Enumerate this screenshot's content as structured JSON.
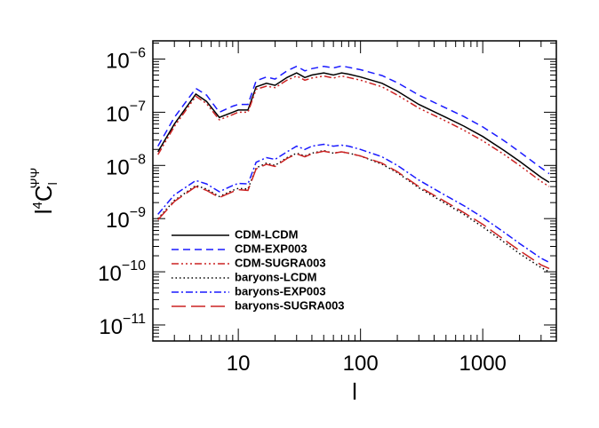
{
  "chart_data": {
    "type": "line",
    "xlabel": "l",
    "ylabel_parts": [
      "l",
      "4",
      "C",
      "l",
      "ΨΨ"
    ],
    "xlog": true,
    "ylog": true,
    "xlim": [
      2,
      4000
    ],
    "ylim": [
      5e-12,
      2.2e-06
    ],
    "xticks": [
      10,
      100,
      1000
    ],
    "yticks": [
      {
        "value": 1e-06,
        "label": "10",
        "exponent": "−6"
      },
      {
        "value": 1e-07,
        "label": "10",
        "exponent": "−7"
      },
      {
        "value": 1e-08,
        "label": "10",
        "exponent": "−8"
      },
      {
        "value": 1e-09,
        "label": "10",
        "exponent": "−9"
      },
      {
        "value": 1e-10,
        "label": "10",
        "exponent": "−10"
      },
      {
        "value": 1e-11,
        "label": "10",
        "exponent": "−11"
      }
    ],
    "legend_position": "lower left",
    "x": [
      2.2,
      3,
      4.5,
      5.5,
      7,
      9,
      10,
      12,
      14,
      17,
      20,
      25,
      30,
      35,
      40,
      50,
      60,
      70,
      80,
      100,
      150,
      200,
      300,
      500,
      700,
      1000,
      1500,
      2000,
      3000,
      3500
    ],
    "series": [
      {
        "name": "CDM-LCDM",
        "color": "#000000",
        "linestyle": "solid",
        "values": [
          1.8e-08,
          6e-08,
          2.2e-07,
          1.6e-07,
          8e-08,
          1e-07,
          1.1e-07,
          1.1e-07,
          3e-07,
          3.5e-07,
          3.2e-07,
          4.5e-07,
          5.5e-07,
          4.5e-07,
          5e-07,
          5.5e-07,
          5e-07,
          5.5e-07,
          5.2e-07,
          4.6e-07,
          3.5e-07,
          2.5e-07,
          1.4e-07,
          8e-08,
          5.5e-08,
          3.5e-08,
          1.9e-08,
          1.2e-08,
          6e-09,
          4.8e-09
        ]
      },
      {
        "name": "CDM-EXP003",
        "color": "#1a1aff",
        "linestyle": "dashed",
        "values": [
          2.3e-08,
          8e-08,
          2.8e-07,
          2.1e-07,
          1e-07,
          1.3e-07,
          1.4e-07,
          1.4e-07,
          3.9e-07,
          4.6e-07,
          4.2e-07,
          6e-07,
          7.3e-07,
          6e-07,
          6.6e-07,
          7.3e-07,
          6.8e-07,
          7.4e-07,
          7e-07,
          6.3e-07,
          4.9e-07,
          3.6e-07,
          2.1e-07,
          1.2e-07,
          8.3e-08,
          5.3e-08,
          2.9e-08,
          1.8e-08,
          9e-09,
          7e-09
        ]
      },
      {
        "name": "CDM-SUGRA003",
        "color": "#cc2222",
        "linestyle": "dashdot3",
        "values": [
          1.6e-08,
          5.4e-08,
          2e-07,
          1.45e-07,
          7.2e-08,
          9e-08,
          1e-07,
          1e-07,
          2.7e-07,
          3.1e-07,
          2.9e-07,
          4e-07,
          4.8e-07,
          4e-07,
          4.4e-07,
          4.8e-07,
          4.4e-07,
          4.8e-07,
          4.5e-07,
          4e-07,
          3e-07,
          2.1e-07,
          1.2e-07,
          6.8e-08,
          4.6e-08,
          2.9e-08,
          1.6e-08,
          1e-08,
          5e-09,
          4e-09
        ]
      },
      {
        "name": "baryons-LCDM",
        "color": "#000000",
        "linestyle": "dotted",
        "values": [
          1e-09,
          2.2e-09,
          4.2e-09,
          3.6e-09,
          2.6e-09,
          3.4e-09,
          3.7e-09,
          3.6e-09,
          9e-09,
          1.1e-08,
          1e-08,
          1.4e-08,
          1.7e-08,
          1.5e-08,
          1.7e-08,
          1.9e-08,
          1.7e-08,
          1.8e-08,
          1.7e-08,
          1.5e-08,
          1.05e-08,
          7.3e-09,
          3.8e-09,
          1.9e-09,
          1.2e-09,
          7e-10,
          3.6e-10,
          2.2e-10,
          1.2e-10,
          1e-10
        ]
      },
      {
        "name": "baryons-EXP003",
        "color": "#1a1aff",
        "linestyle": "dashdot",
        "values": [
          1.2e-09,
          2.8e-09,
          5.2e-09,
          4.5e-09,
          3.2e-09,
          4.2e-09,
          4.6e-09,
          4.5e-09,
          1.15e-08,
          1.4e-08,
          1.3e-08,
          1.8e-08,
          2.3e-08,
          2e-08,
          2.3e-08,
          2.5e-08,
          2.3e-08,
          2.4e-08,
          2.3e-08,
          2e-08,
          1.45e-08,
          1e-08,
          5.3e-09,
          2.7e-09,
          1.75e-09,
          1.05e-09,
          5.5e-10,
          3.4e-10,
          1.8e-10,
          1.5e-10
        ]
      },
      {
        "name": "baryons-SUGRA003",
        "color": "#cc2222",
        "linestyle": "longdash",
        "values": [
          9.5e-10,
          2.1e-09,
          4e-09,
          3.4e-09,
          2.5e-09,
          3.2e-09,
          3.5e-09,
          3.4e-09,
          8.6e-09,
          1.05e-08,
          9.6e-09,
          1.35e-08,
          1.65e-08,
          1.45e-08,
          1.65e-08,
          1.85e-08,
          1.7e-08,
          1.8e-08,
          1.7e-08,
          1.5e-08,
          1.1e-08,
          7.6e-09,
          4e-09,
          2.05e-09,
          1.3e-09,
          7.8e-10,
          4e-10,
          2.5e-10,
          1.35e-10,
          1.15e-10
        ]
      }
    ]
  }
}
